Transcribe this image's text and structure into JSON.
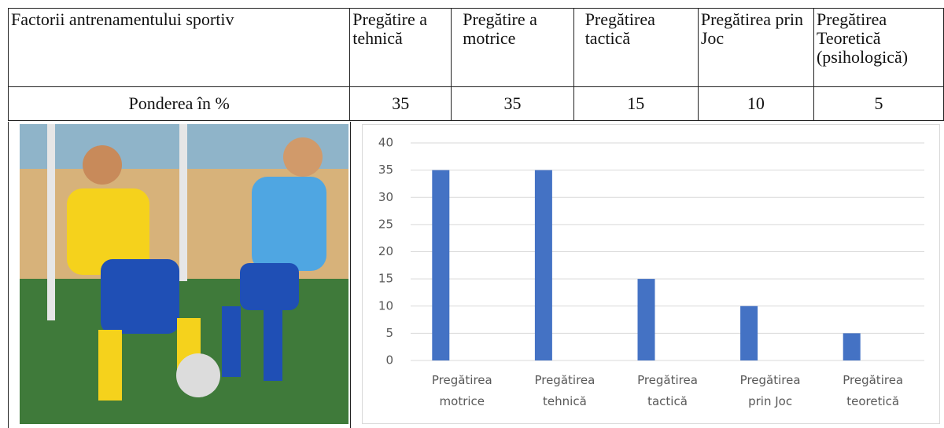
{
  "table": {
    "header": [
      "Factorii antrenamentului sportiv",
      "Pregătire a tehnică",
      "Pregătire a motrice",
      "Pregătirea tactică",
      "Pregătirea prin Joc",
      "Pregătirea Teoretică (psihologică)"
    ],
    "rows": [
      [
        "Ponderea în %",
        35,
        35,
        15,
        10,
        5
      ]
    ]
  },
  "chart_data": {
    "type": "bar",
    "categories": [
      "Pregătirea motrice",
      "Pregătirea tehnică",
      "Pregătirea tactică",
      "Pregătirea prin Joc",
      "Pregătirea teoretică"
    ],
    "values": [
      35,
      35,
      15,
      10,
      5
    ],
    "color": "#4472c4",
    "ylim": [
      0,
      40
    ],
    "yticks": [
      0,
      5,
      10,
      15,
      20,
      25,
      30,
      35,
      40
    ],
    "grid": true
  }
}
